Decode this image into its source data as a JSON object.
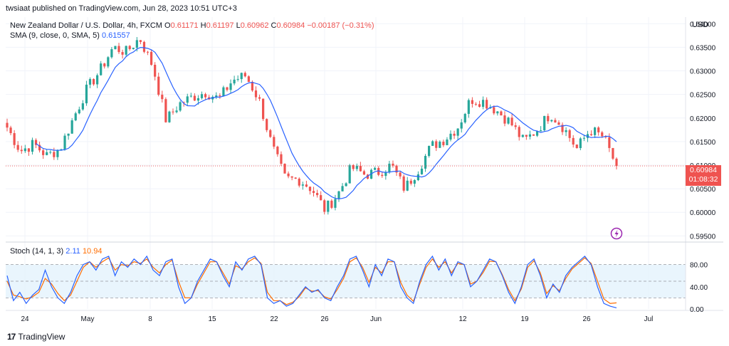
{
  "header": {
    "published": "twsiaat published on TradingView.com, Jun 28, 2023 10:51 UTC+3"
  },
  "legend": {
    "symbol": "New Zealand Dollar / U.S. Dollar, 4h, FXCM",
    "o_label": "O",
    "o": "0.61171",
    "h_label": "H",
    "h": "0.61197",
    "l_label": "L",
    "l": "0.60962",
    "c_label": "C",
    "c": "0.60984",
    "change": "−0.00187 (−0.31%)",
    "sma_label": "SMA (9, close, 0, SMA, 5)",
    "sma_value": "0.61557",
    "stoch_label": "Stoch (14, 1, 3)",
    "stoch_k": "2.11",
    "stoch_d": "10.94"
  },
  "price_tag": {
    "price": "0.60984",
    "countdown": "01:08:32"
  },
  "footer": {
    "brand": "TradingView",
    "logo": "17"
  },
  "colors": {
    "up": "#26a69a",
    "down": "#ef5350",
    "sma": "#2962ff",
    "stoch_k": "#2962ff",
    "stoch_d": "#ff6d00",
    "band": "#e3f2fd"
  },
  "chart_data": {
    "type": "candlestick",
    "symbol": "NZDUSD",
    "timeframe": "4h",
    "currency": "USD",
    "y_ticks": [
      "0.64000",
      "0.63500",
      "0.63000",
      "0.62500",
      "0.62000",
      "0.61500",
      "0.61000",
      "0.60500",
      "0.60000",
      "0.59500"
    ],
    "y_tick_values": [
      0.64,
      0.635,
      0.63,
      0.625,
      0.62,
      0.615,
      0.61,
      0.605,
      0.6,
      0.595
    ],
    "ylim": [
      0.5943,
      0.6405
    ],
    "x_ticks": [
      "24",
      "May",
      "8",
      "15",
      "22",
      "26",
      "Jun",
      "12",
      "19",
      "26",
      "Jul"
    ],
    "last_close": 0.60984,
    "price_path": [
      {
        "t": "Apr 21",
        "v": 0.618
      },
      {
        "t": "Apr 24",
        "v": 0.613
      },
      {
        "t": "Apr 26",
        "v": 0.6145
      },
      {
        "t": "Apr 28",
        "v": 0.612
      },
      {
        "t": "May 1",
        "v": 0.6135
      },
      {
        "t": "May 3",
        "v": 0.62
      },
      {
        "t": "May 5",
        "v": 0.626
      },
      {
        "t": "May 8",
        "v": 0.63
      },
      {
        "t": "May 9",
        "v": 0.635
      },
      {
        "t": "May 11",
        "v": 0.634
      },
      {
        "t": "May 12",
        "v": 0.637
      },
      {
        "t": "May 13",
        "v": 0.631
      },
      {
        "t": "May 15",
        "v": 0.6195
      },
      {
        "t": "May 16",
        "v": 0.623
      },
      {
        "t": "May 18",
        "v": 0.6245
      },
      {
        "t": "May 19",
        "v": 0.6255
      },
      {
        "t": "May 20",
        "v": 0.624
      },
      {
        "t": "May 22",
        "v": 0.628
      },
      {
        "t": "May 23",
        "v": 0.629
      },
      {
        "t": "May 24",
        "v": 0.624
      },
      {
        "t": "May 25",
        "v": 0.614
      },
      {
        "t": "May 26",
        "v": 0.607
      },
      {
        "t": "May 29",
        "v": 0.607
      },
      {
        "t": "May 30",
        "v": 0.605
      },
      {
        "t": "May 31",
        "v": 0.6005
      },
      {
        "t": "Jun 1",
        "v": 0.604
      },
      {
        "t": "Jun 2",
        "v": 0.6095
      },
      {
        "t": "Jun 4",
        "v": 0.608
      },
      {
        "t": "Jun 6",
        "v": 0.6085
      },
      {
        "t": "Jun 7",
        "v": 0.61
      },
      {
        "t": "Jun 8",
        "v": 0.605
      },
      {
        "t": "Jun 9",
        "v": 0.609
      },
      {
        "t": "Jun 12",
        "v": 0.614
      },
      {
        "t": "Jun 13",
        "v": 0.6155
      },
      {
        "t": "Jun 15",
        "v": 0.618
      },
      {
        "t": "Jun 16",
        "v": 0.624
      },
      {
        "t": "Jun 18",
        "v": 0.6235
      },
      {
        "t": "Jun 19",
        "v": 0.6215
      },
      {
        "t": "Jun 20",
        "v": 0.619
      },
      {
        "t": "Jun 21",
        "v": 0.615
      },
      {
        "t": "Jun 22",
        "v": 0.6175
      },
      {
        "t": "Jun 23",
        "v": 0.621
      },
      {
        "t": "Jun 24",
        "v": 0.618
      },
      {
        "t": "Jun 26",
        "v": 0.6135
      },
      {
        "t": "Jun 27",
        "v": 0.6175
      },
      {
        "t": "Jun 28",
        "v": 0.616
      },
      {
        "t": "Jun 28 end",
        "v": 0.6098
      }
    ],
    "stoch": {
      "range": [
        0,
        100
      ],
      "levels": [
        80,
        20
      ],
      "y_ticks": [
        "80.00",
        "40.00",
        "0.00"
      ],
      "y_tick_values": [
        80,
        40,
        0
      ],
      "k_path": [
        60,
        15,
        30,
        10,
        25,
        35,
        70,
        40,
        20,
        10,
        30,
        60,
        80,
        85,
        70,
        90,
        95,
        60,
        85,
        75,
        90,
        80,
        95,
        70,
        60,
        85,
        90,
        40,
        10,
        20,
        50,
        70,
        90,
        85,
        60,
        40,
        85,
        70,
        90,
        95,
        80,
        20,
        10,
        15,
        5,
        10,
        25,
        40,
        30,
        35,
        20,
        15,
        40,
        60,
        90,
        95,
        70,
        40,
        80,
        60,
        90,
        85,
        40,
        20,
        10,
        50,
        80,
        95,
        70,
        90,
        60,
        85,
        80,
        40,
        50,
        70,
        90,
        85,
        60,
        30,
        10,
        40,
        80,
        90,
        60,
        20,
        45,
        30,
        60,
        75,
        85,
        95,
        80,
        40,
        10,
        5,
        2
      ],
      "d_path": [
        50,
        25,
        22,
        18,
        22,
        30,
        55,
        45,
        28,
        15,
        25,
        50,
        75,
        85,
        75,
        85,
        92,
        70,
        80,
        78,
        85,
        82,
        90,
        75,
        65,
        80,
        88,
        50,
        20,
        20,
        45,
        65,
        85,
        85,
        65,
        45,
        78,
        72,
        85,
        92,
        82,
        30,
        15,
        15,
        8,
        12,
        22,
        38,
        32,
        33,
        22,
        18,
        35,
        55,
        85,
        92,
        75,
        48,
        75,
        65,
        85,
        85,
        48,
        25,
        14,
        45,
        75,
        90,
        75,
        85,
        65,
        82,
        80,
        45,
        50,
        66,
        86,
        85,
        62,
        35,
        15,
        36,
        75,
        87,
        65,
        28,
        42,
        33,
        55,
        72,
        82,
        92,
        82,
        50,
        18,
        10,
        11
      ]
    }
  }
}
